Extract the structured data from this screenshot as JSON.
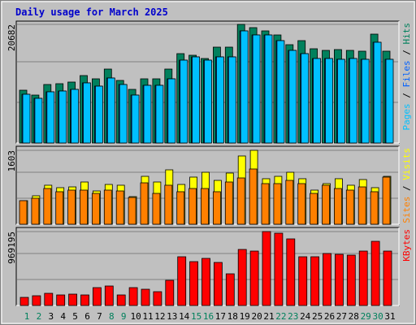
{
  "title": "Daily usage for March 2025",
  "chart_data": [
    {
      "type": "bar",
      "separator": "/",
      "series": [
        {
          "name": "Hits",
          "color": "#00805c",
          "values": [
            9208,
            8358,
            10200,
            10341,
            10625,
            11758,
            11191,
            12891,
            10908,
            9350,
            11191,
            11191,
            12891,
            15583,
            15300,
            14733,
            16716,
            16716,
            20682,
            20116,
            19549,
            18841,
            17141,
            17849,
            16433,
            16149,
            16291,
            16149,
            16008,
            18982,
            16008
          ]
        },
        {
          "name": "Files",
          "color": "#0060ff",
          "values": [
            8500,
            7791,
            8925,
            9066,
            9350,
            10483,
            9916,
            11333,
            10200,
            8358,
            10058,
            10058,
            11191,
            14449,
            15016,
            14449,
            15016,
            15016,
            19549,
            18841,
            18841,
            17849,
            16149,
            15583,
            14733,
            14733,
            14591,
            14733,
            14591,
            17566,
            14591
          ]
        },
        {
          "name": "Pages",
          "color": "#00c0ff",
          "values": [
            8500,
            7791,
            8925,
            9066,
            9350,
            10483,
            9916,
            11333,
            10200,
            8358,
            10058,
            10058,
            11191,
            14449,
            15016,
            14449,
            15016,
            15016,
            19549,
            18841,
            18841,
            17849,
            16149,
            15583,
            14733,
            14733,
            14591,
            14733,
            14591,
            17566,
            14591
          ]
        }
      ],
      "ylim": [
        0,
        21250
      ],
      "yticks": [
        20682
      ]
    },
    {
      "type": "bar",
      "separator": "/",
      "series": [
        {
          "name": "Visits",
          "color": "#ffff00",
          "values": [
            511,
            617,
            846,
            793,
            810,
            916,
            722,
            863,
            846,
            599,
            1039,
            916,
            1180,
            863,
            1022,
            1127,
            951,
            1110,
            1480,
            1603,
            987,
            1039,
            1127,
            987,
            740,
            881,
            987,
            846,
            969,
            793,
            1039
          ]
        },
        {
          "name": "Sites",
          "color": "#ff8000",
          "values": [
            511,
            564,
            775,
            705,
            740,
            740,
            669,
            740,
            722,
            581,
            898,
            669,
            846,
            705,
            775,
            775,
            705,
            916,
            1004,
            1198,
            881,
            881,
            951,
            881,
            669,
            846,
            775,
            740,
            810,
            705,
            1022
          ]
        }
      ],
      "ylim": [
        0,
        1691
      ],
      "yticks": [
        1603
      ]
    },
    {
      "type": "bar",
      "categories": [
        "1",
        "2",
        "3",
        "4",
        "5",
        "6",
        "7",
        "8",
        "9",
        "10",
        "11",
        "12",
        "13",
        "14",
        "15",
        "16",
        "17",
        "18",
        "19",
        "20",
        "21",
        "22",
        "23",
        "24",
        "25",
        "26",
        "27",
        "28",
        "29",
        "30",
        "31"
      ],
      "category_colors": [
        "#00805c",
        "#00805c",
        "#000000",
        "#000000",
        "#000000",
        "#000000",
        "#000000",
        "#00805c",
        "#00805c",
        "#000000",
        "#000000",
        "#000000",
        "#000000",
        "#000000",
        "#00805c",
        "#00805c",
        "#000000",
        "#000000",
        "#000000",
        "#000000",
        "#000000",
        "#00805c",
        "#00805c",
        "#000000",
        "#000000",
        "#000000",
        "#000000",
        "#000000",
        "#00805c",
        "#00805c",
        "#000000"
      ],
      "series": [
        {
          "name": "KBytes",
          "color": "#ff0000",
          "values": [
            106500,
            127800,
            159750,
            138450,
            149100,
            138450,
            234300,
            255600,
            138450,
            234300,
            213000,
            181050,
            330150,
            639000,
            575100,
            617700,
            564450,
            415350,
            734850,
            713550,
            969195,
            947850,
            873300,
            639000,
            639000,
            681600,
            670950,
            660300,
            713550,
            841350,
            713550
          ]
        }
      ],
      "ylim": [
        0,
        1022448
      ],
      "yticks": [
        969195
      ]
    }
  ]
}
